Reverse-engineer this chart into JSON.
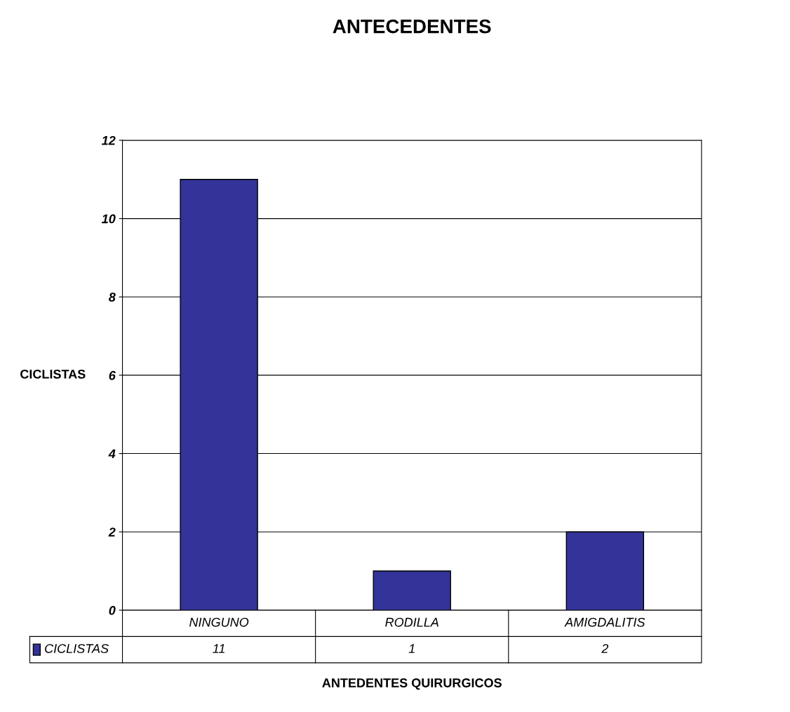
{
  "chart_data": {
    "type": "bar",
    "title": "ANTECEDENTES",
    "xlabel": "ANTEDENTES QUIRURGICOS",
    "ylabel": "CICLISTAS",
    "categories": [
      "NINGUNO",
      "RODILLA",
      "AMIGDALITIS"
    ],
    "series": [
      {
        "name": "CICLISTAS",
        "color": "#333399",
        "values": [
          11,
          1,
          2
        ]
      }
    ],
    "ylim": [
      0,
      12
    ],
    "yticks": [
      0,
      2,
      4,
      6,
      8,
      10,
      12
    ],
    "grid": "y",
    "data_labels": true,
    "legend": "bottom"
  }
}
